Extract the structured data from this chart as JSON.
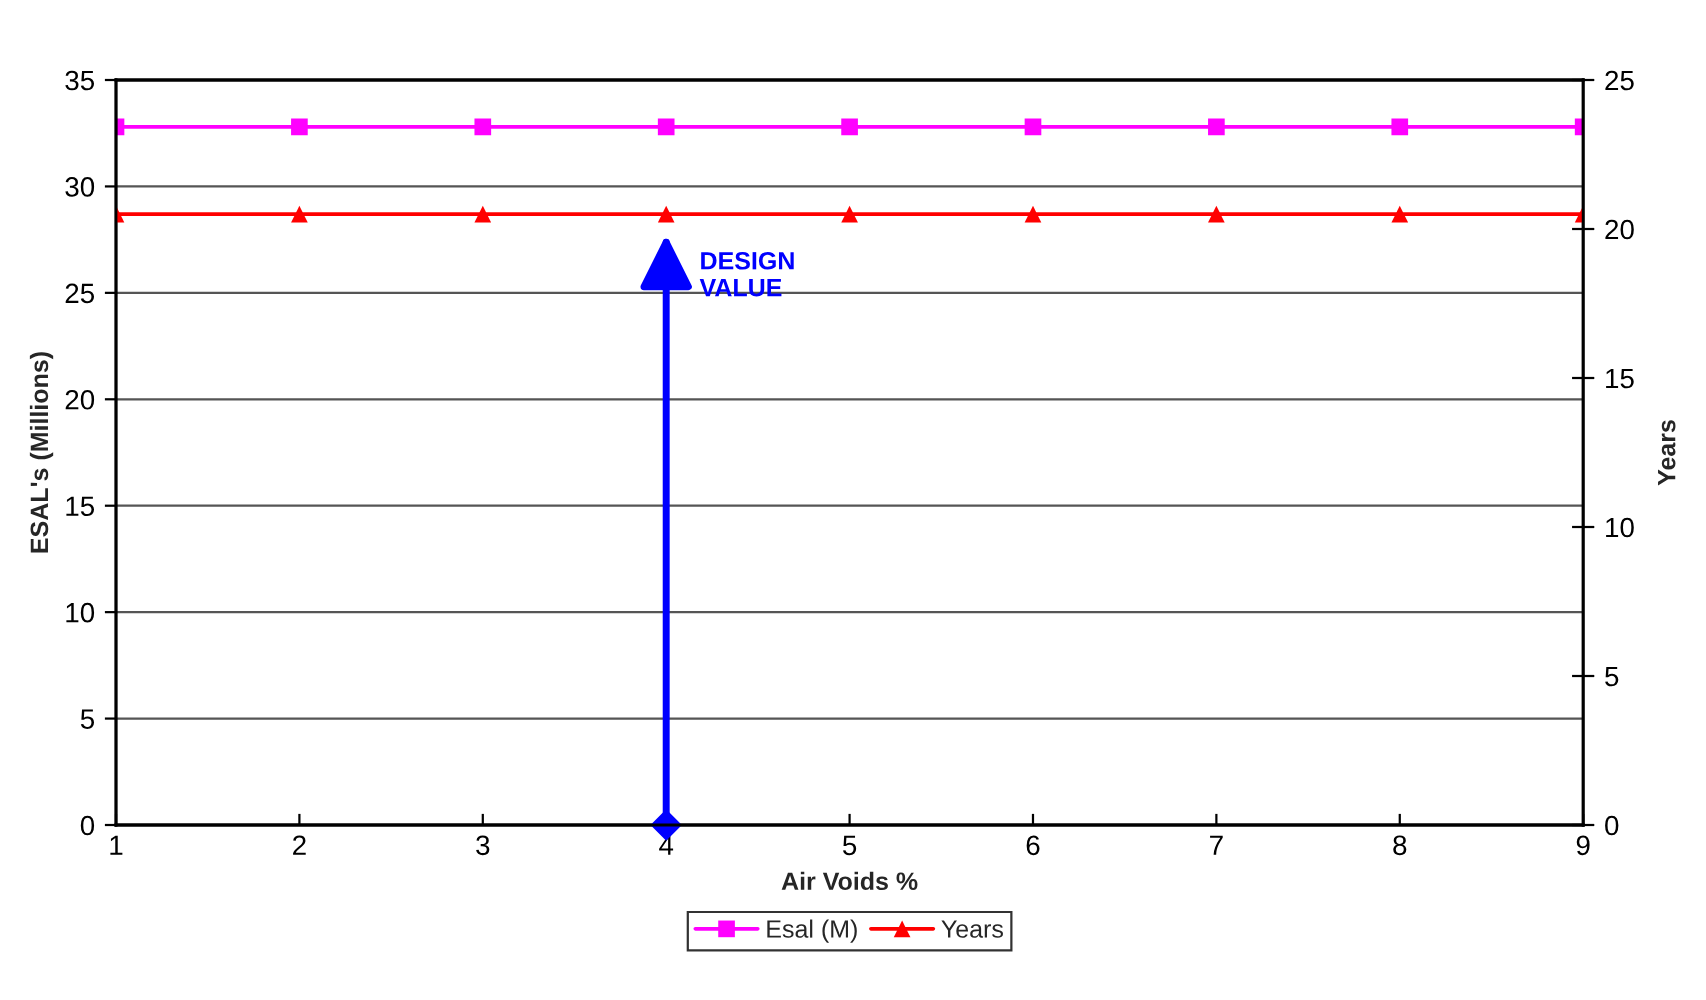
{
  "chart_data": {
    "type": "line",
    "x": [
      1,
      2,
      3,
      4,
      5,
      6,
      7,
      8,
      9
    ],
    "xlabel": "Air Voids %",
    "ylabel": "ESAL's (Millions)",
    "y2label": "Years",
    "series": [
      {
        "name": "Esal (M)",
        "color": "#ff00ff",
        "marker": "square",
        "values": [
          32.8,
          32.8,
          32.8,
          32.8,
          32.8,
          32.8,
          32.8,
          32.8,
          32.8
        ]
      },
      {
        "name": "Years",
        "color": "#ff0000",
        "marker": "triangle",
        "axis": "y2",
        "values": [
          20.5,
          20.5,
          20.5,
          20.5,
          20.5,
          20.5,
          20.5,
          20.5,
          20.5
        ]
      }
    ],
    "annotations": [
      {
        "text": "DESIGN VALUE",
        "x": 4,
        "y": 28
      }
    ],
    "xlim": [
      1,
      9
    ],
    "xticks": [
      1,
      2,
      3,
      4,
      5,
      6,
      7,
      8,
      9
    ],
    "ylim": [
      0,
      35
    ],
    "yticks": [
      0,
      5,
      10,
      15,
      20,
      25,
      30,
      35
    ],
    "y2lim": [
      0,
      25
    ],
    "y2ticks": [
      0,
      5,
      10,
      15,
      20,
      25
    ],
    "grid": "y",
    "legend": "bottom"
  }
}
